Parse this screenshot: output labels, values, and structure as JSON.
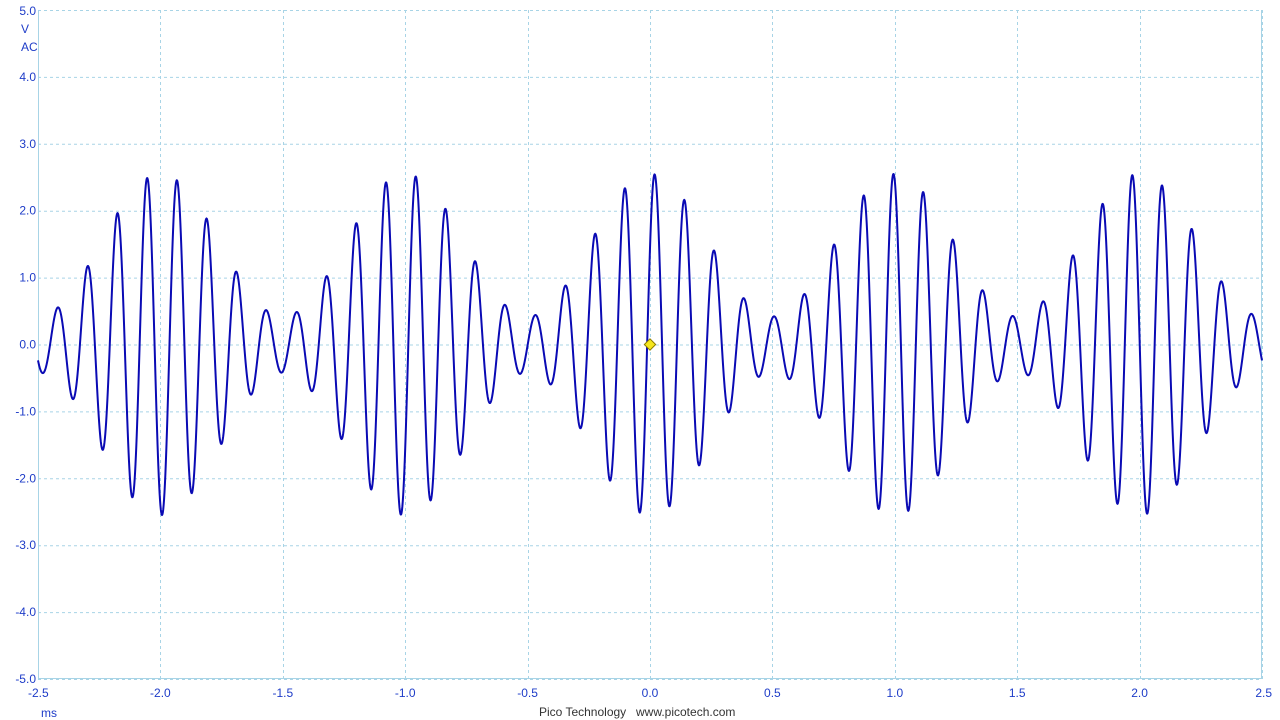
{
  "chart_data": {
    "type": "line",
    "title": "",
    "xlabel": "",
    "ylabel": "",
    "x_unit": "ms",
    "y_unit": "V",
    "coupling": "AC",
    "xlim": [
      -2.5,
      2.5
    ],
    "ylim": [
      -5.0,
      5.0
    ],
    "x_ticks": [
      -2.5,
      -2.0,
      -1.5,
      -1.0,
      -0.5,
      0.0,
      0.5,
      1.0,
      1.5,
      2.0,
      2.5
    ],
    "x_tick_labels": [
      "-2.5",
      "-2.0",
      "-1.5",
      "-1.0",
      "-0.5",
      "0.0",
      "0.5",
      "1.0",
      "1.5",
      "2.0",
      "2.5"
    ],
    "y_ticks": [
      5.0,
      4.0,
      3.0,
      2.0,
      1.0,
      0.0,
      -1.0,
      -2.0,
      -3.0,
      -4.0,
      -5.0
    ],
    "y_tick_labels": [
      "5.0",
      "4.0",
      "3.0",
      "2.0",
      "1.0",
      "0.0",
      "-1.0",
      "-2.0",
      "-3.0",
      "-4.0",
      "-5.0"
    ],
    "grid": true,
    "grid_style": "dashed",
    "series": [
      {
        "color": "#0a0ab4",
        "waveform": "amplitude-modulated sine",
        "carrier_frequency_khz": 8.2,
        "envelope_period_ms": 1.0,
        "envelope_peak_ms": 0.0,
        "peak_amplitude_v": 2.55,
        "minimum_amplitude_v": 0.42
      }
    ],
    "trigger_marker": {
      "x": 0.0,
      "y": 0.0,
      "color": "#f5e61e"
    }
  },
  "colors": {
    "axis_text": "#1e3cc8",
    "grid": "#a8d4e6",
    "trace": "#0a0ab4"
  },
  "footer": {
    "x_unit_label": "ms",
    "brand": "Pico Technology",
    "website": "www.picotech.com"
  }
}
